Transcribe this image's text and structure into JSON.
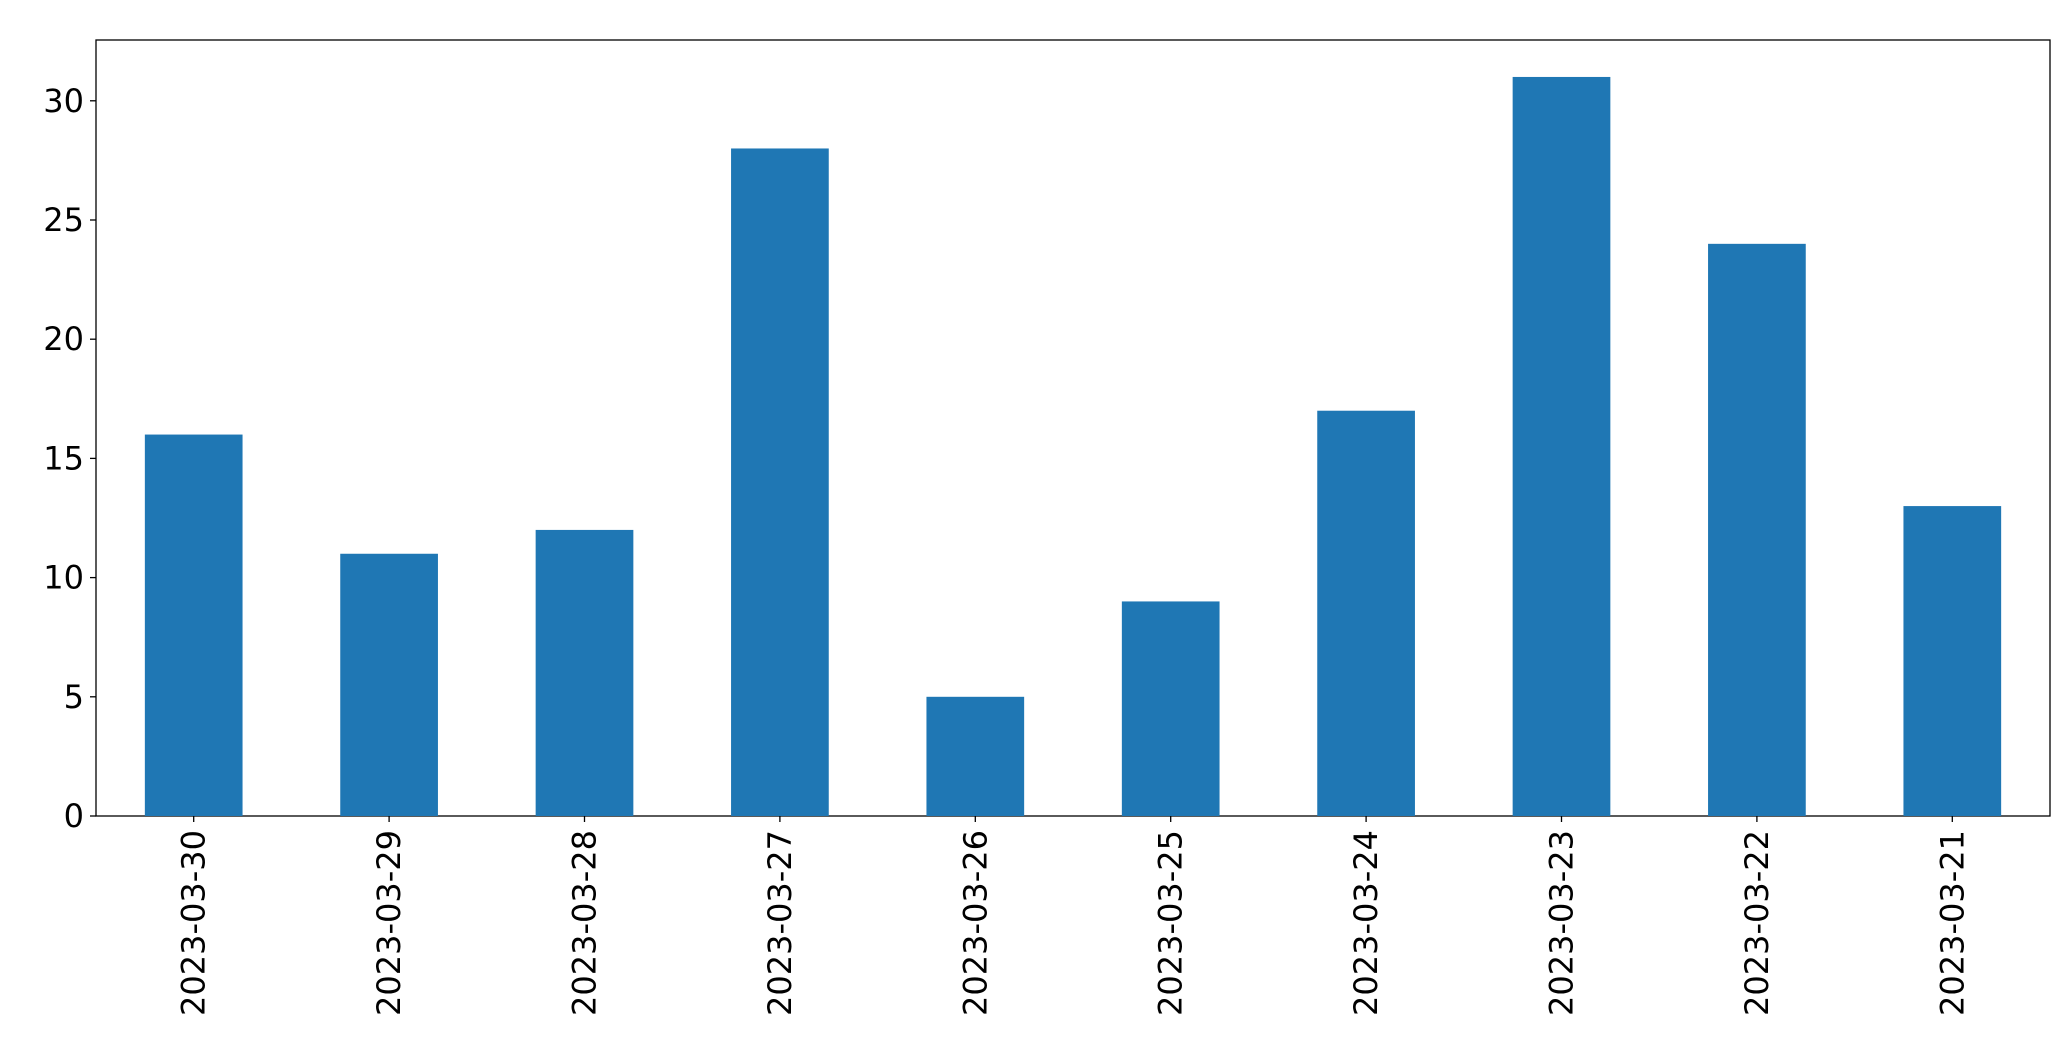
{
  "chart_data": {
    "type": "bar",
    "categories": [
      "2023-03-30",
      "2023-03-29",
      "2023-03-28",
      "2023-03-27",
      "2023-03-26",
      "2023-03-25",
      "2023-03-24",
      "2023-03-23",
      "2023-03-22",
      "2023-03-21"
    ],
    "values": [
      16,
      11,
      12,
      28,
      5,
      9,
      17,
      31,
      24,
      13
    ],
    "color": "#1f77b4",
    "ylim": [
      0,
      32.55
    ],
    "yticks": [
      0,
      5,
      10,
      15,
      20,
      25,
      30
    ],
    "grid": false
  }
}
